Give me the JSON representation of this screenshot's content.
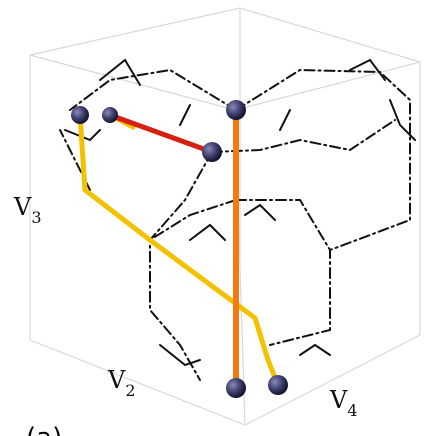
{
  "axis_labels": [
    {
      "base": "V",
      "sub": "3"
    },
    {
      "base": "V",
      "sub": "2"
    },
    {
      "base": "V",
      "sub": "4"
    }
  ],
  "panel_label": "(a)"
}
